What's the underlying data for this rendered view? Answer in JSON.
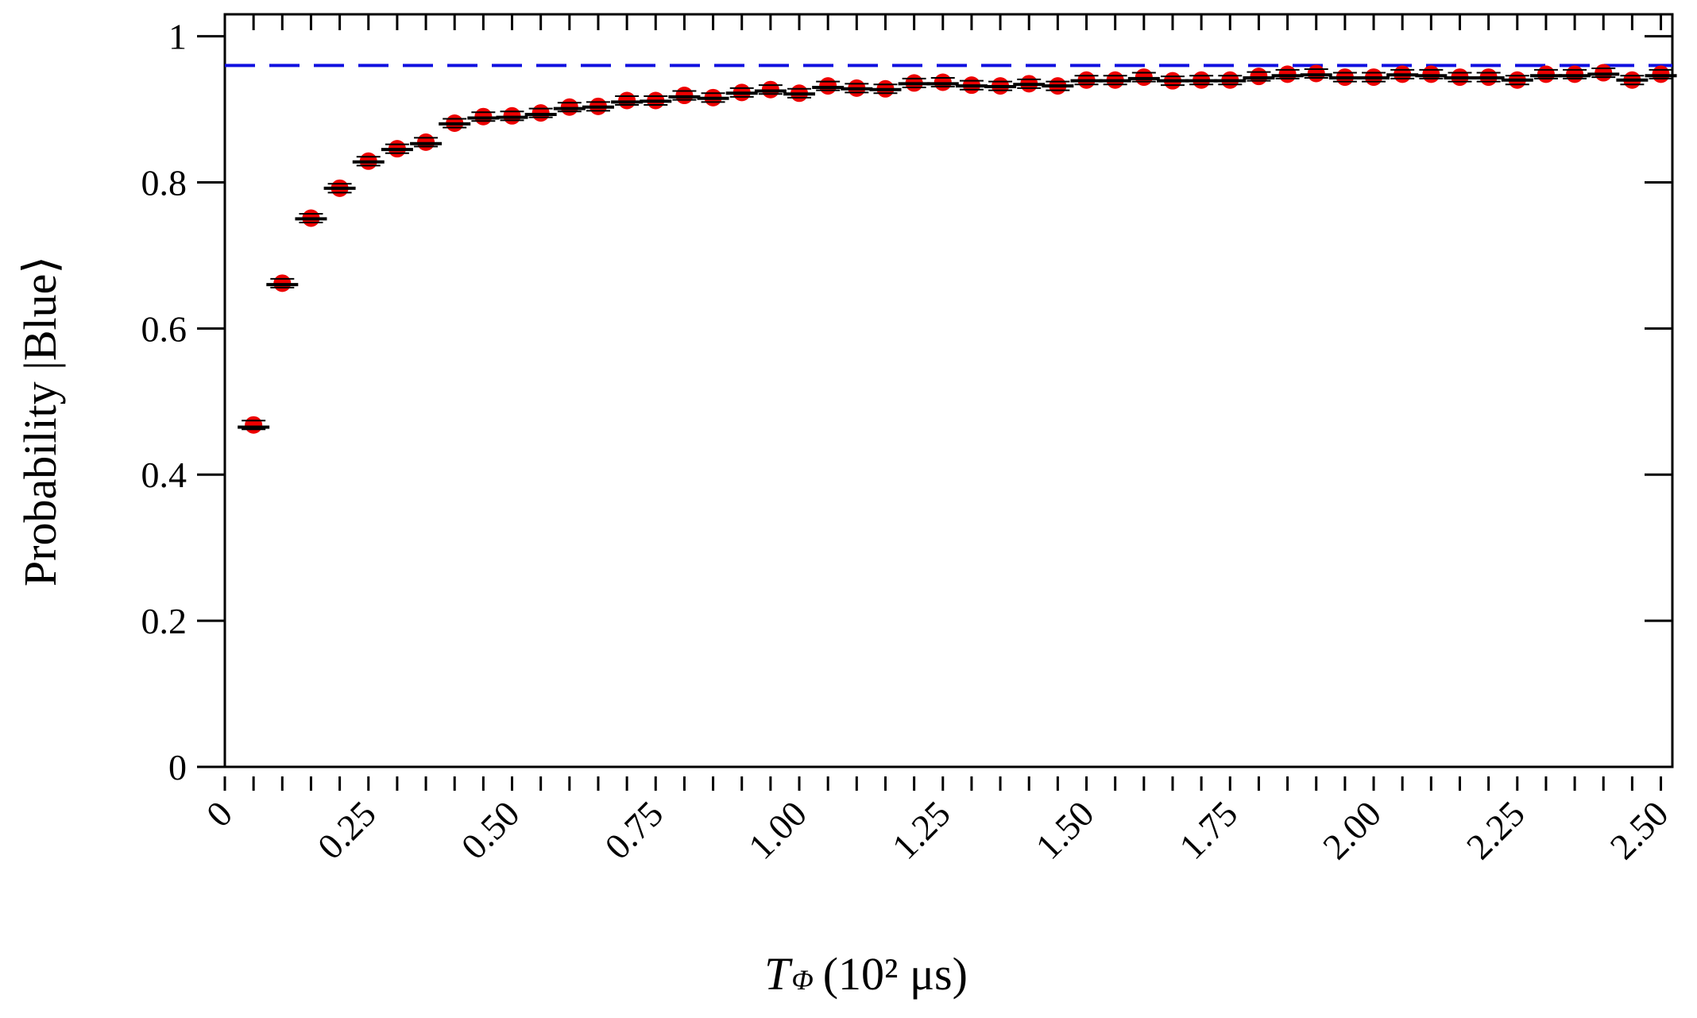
{
  "chart_data": {
    "type": "scatter",
    "xlabel_symbol": "T",
    "xlabel_subscript": "Φ",
    "xlabel_units": "(10² μs)",
    "ylabel": "Probability |Blue⟩",
    "xlim": [
      0,
      2.52
    ],
    "ylim": [
      0,
      1.03
    ],
    "x_ticks": [
      0,
      0.25,
      0.5,
      0.75,
      1.0,
      1.25,
      1.5,
      1.75,
      2.0,
      2.25,
      2.5
    ],
    "x_tick_labels": [
      "0",
      "0.25",
      "0.50",
      "0.75",
      "1.00",
      "1.25",
      "1.50",
      "1.75",
      "2.00",
      "2.25",
      "2.50"
    ],
    "x_minor_step": 0.05,
    "y_ticks": [
      0,
      0.2,
      0.4,
      0.6,
      0.8,
      1
    ],
    "y_tick_labels": [
      "0",
      "0.2",
      "0.4",
      "0.6",
      "0.8",
      "1"
    ],
    "reference_line": {
      "y": 0.96,
      "style": "dashed",
      "color": "#1010e0"
    },
    "colors": {
      "points": "#ee0000",
      "fit": "#000000",
      "errorbars": "#000000"
    },
    "grid": false,
    "series": [
      {
        "x": [
          0.05,
          0.1,
          0.15,
          0.2,
          0.25,
          0.3,
          0.35,
          0.4,
          0.45,
          0.5,
          0.55,
          0.6,
          0.65,
          0.7,
          0.75,
          0.8,
          0.85,
          0.9,
          0.95,
          1.0,
          1.05,
          1.1,
          1.15,
          1.2,
          1.25,
          1.3,
          1.35,
          1.4,
          1.45,
          1.5,
          1.55,
          1.6,
          1.65,
          1.7,
          1.75,
          1.8,
          1.85,
          1.9,
          1.95,
          2.0,
          2.05,
          2.1,
          2.15,
          2.2,
          2.25,
          2.3,
          2.35,
          2.4,
          2.45,
          2.5
        ],
        "y": [
          0.468,
          0.662,
          0.751,
          0.792,
          0.829,
          0.846,
          0.855,
          0.881,
          0.89,
          0.891,
          0.895,
          0.903,
          0.904,
          0.912,
          0.912,
          0.919,
          0.916,
          0.923,
          0.927,
          0.922,
          0.932,
          0.929,
          0.928,
          0.936,
          0.937,
          0.933,
          0.932,
          0.935,
          0.932,
          0.94,
          0.94,
          0.944,
          0.939,
          0.94,
          0.94,
          0.945,
          0.948,
          0.949,
          0.944,
          0.944,
          0.948,
          0.948,
          0.944,
          0.944,
          0.94,
          0.948,
          0.948,
          0.95,
          0.94,
          0.948
        ],
        "fit": [
          0.465,
          0.66,
          0.75,
          0.792,
          0.828,
          0.845,
          0.853,
          0.88,
          0.888,
          0.889,
          0.893,
          0.901,
          0.903,
          0.91,
          0.911,
          0.917,
          0.915,
          0.922,
          0.925,
          0.921,
          0.93,
          0.928,
          0.927,
          0.935,
          0.935,
          0.932,
          0.931,
          0.934,
          0.932,
          0.939,
          0.939,
          0.942,
          0.939,
          0.939,
          0.939,
          0.943,
          0.946,
          0.947,
          0.943,
          0.943,
          0.947,
          0.946,
          0.943,
          0.943,
          0.94,
          0.946,
          0.946,
          0.948,
          0.94,
          0.946
        ],
        "error": 0.006
      }
    ]
  }
}
